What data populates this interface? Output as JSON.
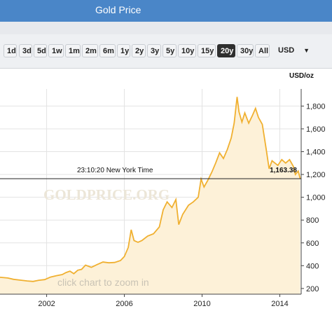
{
  "window": {
    "title": "Gold Price"
  },
  "toolbar": {
    "ranges": [
      "1d",
      "3d",
      "5d",
      "1w",
      "1m",
      "2m",
      "6m",
      "1y",
      "2y",
      "3y",
      "5y",
      "10y",
      "15y",
      "20y",
      "30y",
      "All"
    ],
    "selected_range": "20y",
    "currency": "USD",
    "currency_caret": "▼"
  },
  "crosshair": {
    "time": "23:10:20 New York Time",
    "price": "1,163.38"
  },
  "watermark": "GOLDPRICE.ORG",
  "zoom_hint": "click chart to zoom in",
  "colors": {
    "line": "#f0b030",
    "fill": "#fdf1d8",
    "titlebar": "#4a86c8",
    "active_button": "#2f2f2f"
  },
  "chart_data": {
    "type": "area",
    "ylabel": "USD/oz",
    "ylim": [
      150,
      1950
    ],
    "xlim": [
      1999.6,
      2015.1
    ],
    "yticks": [
      200,
      400,
      600,
      800,
      1000,
      1200,
      1400,
      1600,
      1800
    ],
    "ytick_labels": [
      "200",
      "400",
      "600",
      "800",
      "1,000",
      "1,200",
      "1,400",
      "1,600",
      "1,800"
    ],
    "xticks": [
      2002,
      2006,
      2010,
      2014
    ],
    "xtick_labels": [
      "2002",
      "2006",
      "2010",
      "2014"
    ],
    "grid": true,
    "series": [
      {
        "x": [
          1999.6,
          2000.0,
          2000.3,
          2000.7,
          2001.0,
          2001.3,
          2001.6,
          2001.9,
          2002.2,
          2002.5,
          2002.8,
          2003.0,
          2003.2,
          2003.4,
          2003.6,
          2003.8,
          2004.0,
          2004.3,
          2004.6,
          2004.9,
          2005.2,
          2005.5,
          2005.8,
          2006.0,
          2006.2,
          2006.35,
          2006.5,
          2006.7,
          2006.9,
          2007.2,
          2007.5,
          2007.8,
          2008.0,
          2008.2,
          2008.45,
          2008.65,
          2008.8,
          2009.0,
          2009.3,
          2009.55,
          2009.8,
          2009.95,
          2010.1,
          2010.3,
          2010.5,
          2010.7,
          2010.9,
          2011.1,
          2011.3,
          2011.5,
          2011.65,
          2011.8,
          2011.9,
          2012.05,
          2012.2,
          2012.4,
          2012.6,
          2012.75,
          2012.9,
          2013.1,
          2013.3,
          2013.45,
          2013.6,
          2013.75,
          2013.9,
          2014.1,
          2014.3,
          2014.5,
          2014.7,
          2014.8,
          2014.95,
          2015.05
        ],
        "y": [
          298,
          292,
          280,
          272,
          266,
          262,
          272,
          278,
          300,
          312,
          322,
          340,
          352,
          330,
          360,
          368,
          405,
          385,
          410,
          432,
          425,
          428,
          445,
          480,
          560,
          715,
          620,
          605,
          620,
          660,
          680,
          740,
          890,
          960,
          910,
          980,
          760,
          850,
          930,
          960,
          1000,
          1160,
          1090,
          1150,
          1220,
          1300,
          1390,
          1340,
          1420,
          1520,
          1650,
          1880,
          1750,
          1660,
          1740,
          1650,
          1720,
          1780,
          1700,
          1640,
          1420,
          1250,
          1320,
          1300,
          1280,
          1330,
          1300,
          1330,
          1270,
          1200,
          1230,
          1163
        ]
      }
    ]
  }
}
